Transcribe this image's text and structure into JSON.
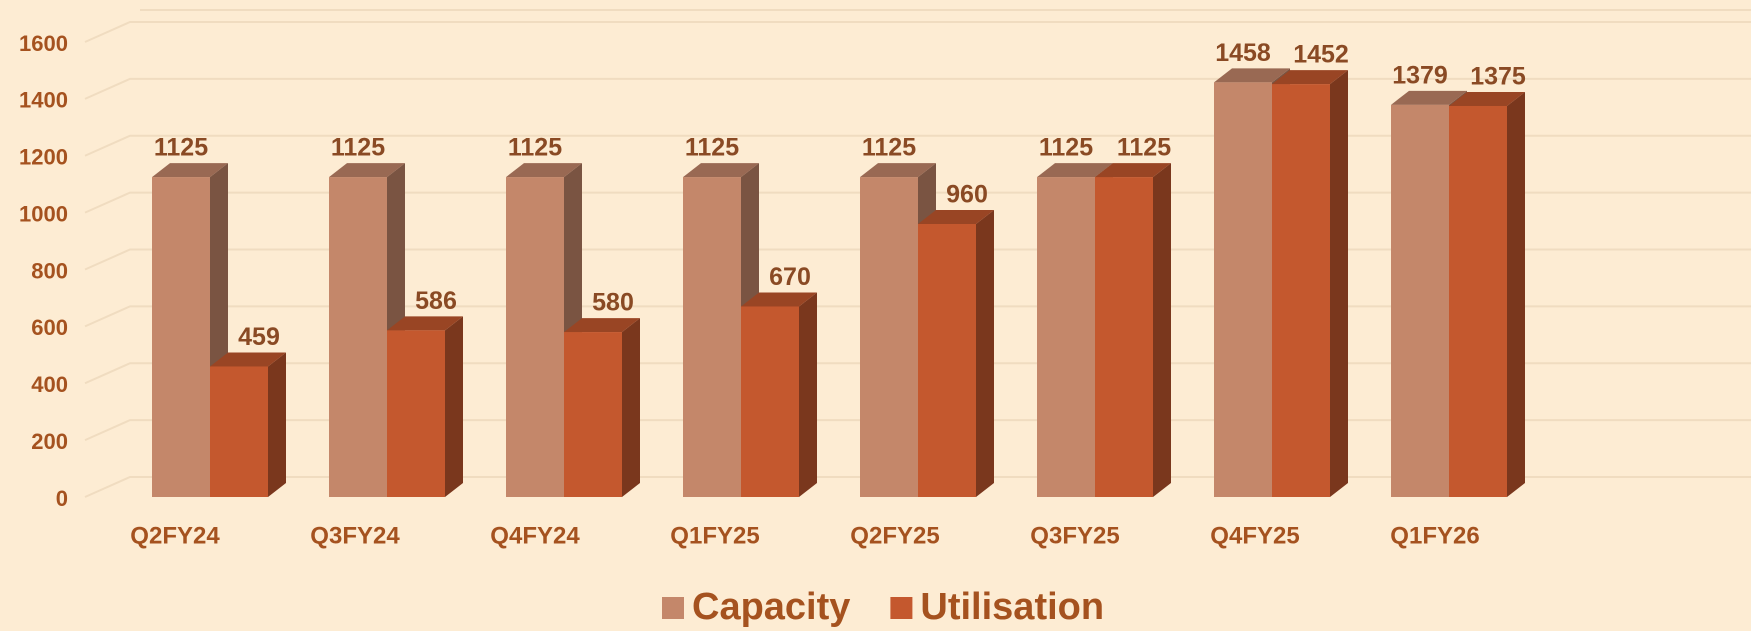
{
  "chart_data": {
    "type": "bar3d",
    "categories": [
      "Q2FY24",
      "Q3FY24",
      "Q4FY24",
      "Q1FY25",
      "Q2FY25",
      "Q3FY25",
      "Q4FY25",
      "Q1FY26"
    ],
    "series": [
      {
        "name": "Capacity",
        "color": "#c4876a",
        "values": [
          1125,
          1125,
          1125,
          1125,
          1125,
          1125,
          1458,
          1379
        ]
      },
      {
        "name": "Utilisation",
        "color": "#c4582e",
        "values": [
          459,
          586,
          580,
          670,
          960,
          1125,
          1452,
          1375
        ]
      }
    ],
    "ylim": [
      0,
      1600
    ],
    "yticks": [
      0,
      200,
      400,
      600,
      800,
      1000,
      1200,
      1400,
      1600
    ],
    "grid": true,
    "legend": "bottom"
  }
}
